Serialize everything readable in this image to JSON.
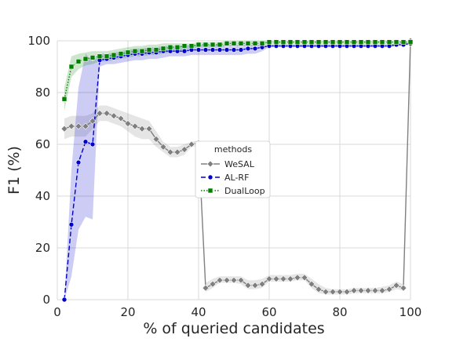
{
  "chart_data": {
    "type": "line",
    "xlabel": "% of queried candidates",
    "ylabel": "F1 (%)",
    "xlim": [
      0,
      100
    ],
    "ylim": [
      0,
      100
    ],
    "xticks": [
      0,
      20,
      40,
      60,
      80,
      100
    ],
    "yticks": [
      0,
      20,
      40,
      60,
      80,
      100
    ],
    "grid": true,
    "legend": {
      "title": "methods",
      "placement": "center",
      "entries": [
        "WeSAL",
        "AL-RF",
        "DualLoop"
      ]
    },
    "series": [
      {
        "name": "WeSAL",
        "color": "#7f7f7f",
        "marker": "diamond",
        "linestyle": "solid",
        "x": [
          2,
          4,
          6,
          8,
          10,
          12,
          14,
          16,
          18,
          20,
          22,
          24,
          26,
          28,
          30,
          32,
          34,
          36,
          38,
          40,
          42,
          44,
          46,
          48,
          50,
          52,
          54,
          56,
          58,
          60,
          62,
          64,
          66,
          68,
          70,
          72,
          74,
          76,
          78,
          80,
          82,
          84,
          86,
          88,
          90,
          92,
          94,
          96,
          98,
          100
        ],
        "y": [
          66,
          67,
          67,
          67,
          69,
          72,
          72,
          71,
          70,
          68,
          67,
          66,
          66,
          62,
          59,
          57,
          57,
          58,
          60,
          60.5,
          4.5,
          6,
          7.5,
          7.5,
          7.5,
          7.5,
          5.5,
          5.5,
          6,
          8,
          8,
          8,
          8,
          8.5,
          8.5,
          6,
          4,
          3,
          3,
          3,
          3,
          3.5,
          3.5,
          3.5,
          3.5,
          3.5,
          4,
          5.5,
          4.5,
          100
        ],
        "band_upper": [
          70,
          71,
          71,
          71,
          72,
          75,
          75,
          74,
          73,
          72,
          71,
          70,
          69,
          65,
          61,
          59,
          59,
          60,
          61,
          61.5,
          6.5,
          8,
          9,
          9,
          9,
          9,
          7.5,
          7.5,
          8,
          9.5,
          9.5,
          9.5,
          9.5,
          10,
          10,
          8,
          6,
          4.5,
          4,
          4,
          4,
          4.5,
          4.5,
          4.5,
          4.5,
          5,
          5.5,
          7,
          6,
          100
        ],
        "band_lower": [
          62,
          63,
          63,
          63,
          66,
          69,
          69,
          68,
          67,
          65,
          63,
          62,
          62,
          59,
          57,
          55,
          55,
          56,
          59,
          59.5,
          3,
          4.5,
          6.5,
          6.5,
          6.5,
          6,
          4,
          4,
          4.5,
          7,
          7,
          7,
          7,
          7.5,
          7.5,
          4.5,
          2.5,
          2,
          2,
          2,
          2,
          2.5,
          2.5,
          2.5,
          2.5,
          2.5,
          3,
          4,
          3.5,
          100
        ]
      },
      {
        "name": "AL-RF",
        "color": "#0000cc",
        "marker": "circle",
        "linestyle": "dashed",
        "x": [
          2,
          4,
          6,
          8,
          10,
          12,
          14,
          16,
          18,
          20,
          22,
          24,
          26,
          28,
          30,
          32,
          34,
          36,
          38,
          40,
          42,
          44,
          46,
          48,
          50,
          52,
          54,
          56,
          58,
          60,
          62,
          64,
          66,
          68,
          70,
          72,
          74,
          76,
          78,
          80,
          82,
          84,
          86,
          88,
          90,
          92,
          94,
          96,
          98,
          100
        ],
        "y": [
          0,
          29,
          53,
          61,
          60,
          92.5,
          93,
          93.5,
          94,
          94.5,
          95,
          95,
          95.5,
          95.5,
          96,
          96,
          96,
          96,
          96.5,
          96.5,
          96.5,
          96.5,
          96.5,
          96.5,
          96.5,
          96.5,
          97,
          97,
          97.5,
          98,
          98,
          98,
          98,
          98,
          98,
          98,
          98,
          98,
          98,
          98,
          98,
          98,
          98,
          98,
          98,
          98,
          98,
          98.5,
          98.5,
          99
        ],
        "band_upper": [
          0,
          50,
          82,
          95,
          92,
          95,
          95,
          95.5,
          96,
          96.5,
          97,
          97,
          97.5,
          97.5,
          98,
          98,
          98,
          98,
          98.5,
          98.5,
          98.5,
          98.5,
          98.5,
          98.5,
          98.5,
          98.5,
          98.5,
          98.5,
          98.5,
          98.5,
          98.5,
          98.5,
          98.5,
          98.5,
          98.5,
          98.5,
          98.5,
          98.5,
          98.5,
          98.5,
          98.5,
          98.5,
          98.5,
          98.5,
          98.5,
          98.5,
          98.5,
          99,
          99,
          99.5
        ],
        "band_lower": [
          0,
          9,
          27,
          32,
          31,
          90,
          91,
          91,
          91.5,
          92,
          92.5,
          92.5,
          93,
          93,
          93.5,
          94,
          94,
          94,
          94.5,
          94.5,
          94.5,
          94.5,
          94.5,
          94.5,
          94.5,
          94.5,
          95,
          95,
          96,
          97.5,
          97.5,
          97.5,
          97.5,
          97.5,
          97.5,
          97.5,
          97.5,
          97.5,
          97.5,
          97.5,
          97.5,
          97.5,
          97.5,
          97.5,
          97.5,
          97.5,
          97.5,
          98,
          98,
          98.5
        ]
      },
      {
        "name": "DualLoop",
        "color": "#007f00",
        "marker": "square",
        "linestyle": "dotted",
        "x": [
          2,
          4,
          6,
          8,
          10,
          12,
          14,
          16,
          18,
          20,
          22,
          24,
          26,
          28,
          30,
          32,
          34,
          36,
          38,
          40,
          42,
          44,
          46,
          48,
          50,
          52,
          54,
          56,
          58,
          60,
          62,
          64,
          66,
          68,
          70,
          72,
          74,
          76,
          78,
          80,
          82,
          84,
          86,
          88,
          90,
          92,
          94,
          96,
          98,
          100
        ],
        "y": [
          77.5,
          90,
          92,
          93,
          93.5,
          94,
          94,
          94.5,
          95,
          95.5,
          96,
          96,
          96.5,
          96.5,
          97,
          97.5,
          97.5,
          98,
          98,
          98.5,
          98.5,
          98.5,
          98.5,
          99,
          99,
          99,
          99,
          99,
          99,
          99.5,
          99.5,
          99.5,
          99.5,
          99.5,
          99.5,
          99.5,
          99.5,
          99.5,
          99.5,
          99.5,
          99.5,
          99.5,
          99.5,
          99.5,
          99.5,
          99.5,
          99.5,
          99.5,
          99.5,
          99.5
        ],
        "band_upper": [
          82,
          94,
          95,
          95.5,
          96,
          96,
          96,
          96.5,
          97,
          97.5,
          98,
          98,
          98.5,
          98.5,
          99,
          99,
          99,
          99,
          99,
          99.5,
          99.5,
          99.5,
          99.5,
          100,
          100,
          100,
          100,
          100,
          100,
          100,
          100,
          100,
          100,
          100,
          100,
          100,
          100,
          100,
          100,
          100,
          100,
          100,
          100,
          100,
          100,
          100,
          100,
          100,
          100,
          100
        ],
        "band_lower": [
          73,
          86,
          89,
          90.5,
          91,
          92,
          92,
          92.5,
          93,
          93.5,
          94,
          94,
          94.5,
          94.5,
          95,
          95.5,
          96,
          96.5,
          97,
          97.5,
          97.5,
          97.5,
          97.5,
          98,
          98,
          98,
          98,
          98,
          98,
          98.5,
          98.5,
          98.5,
          98.5,
          98.5,
          98.5,
          98.5,
          98.5,
          98.5,
          98.5,
          98.5,
          98.5,
          98.5,
          98.5,
          98.5,
          98.5,
          98.5,
          98.5,
          98.5,
          98.5,
          98.5
        ]
      }
    ]
  }
}
